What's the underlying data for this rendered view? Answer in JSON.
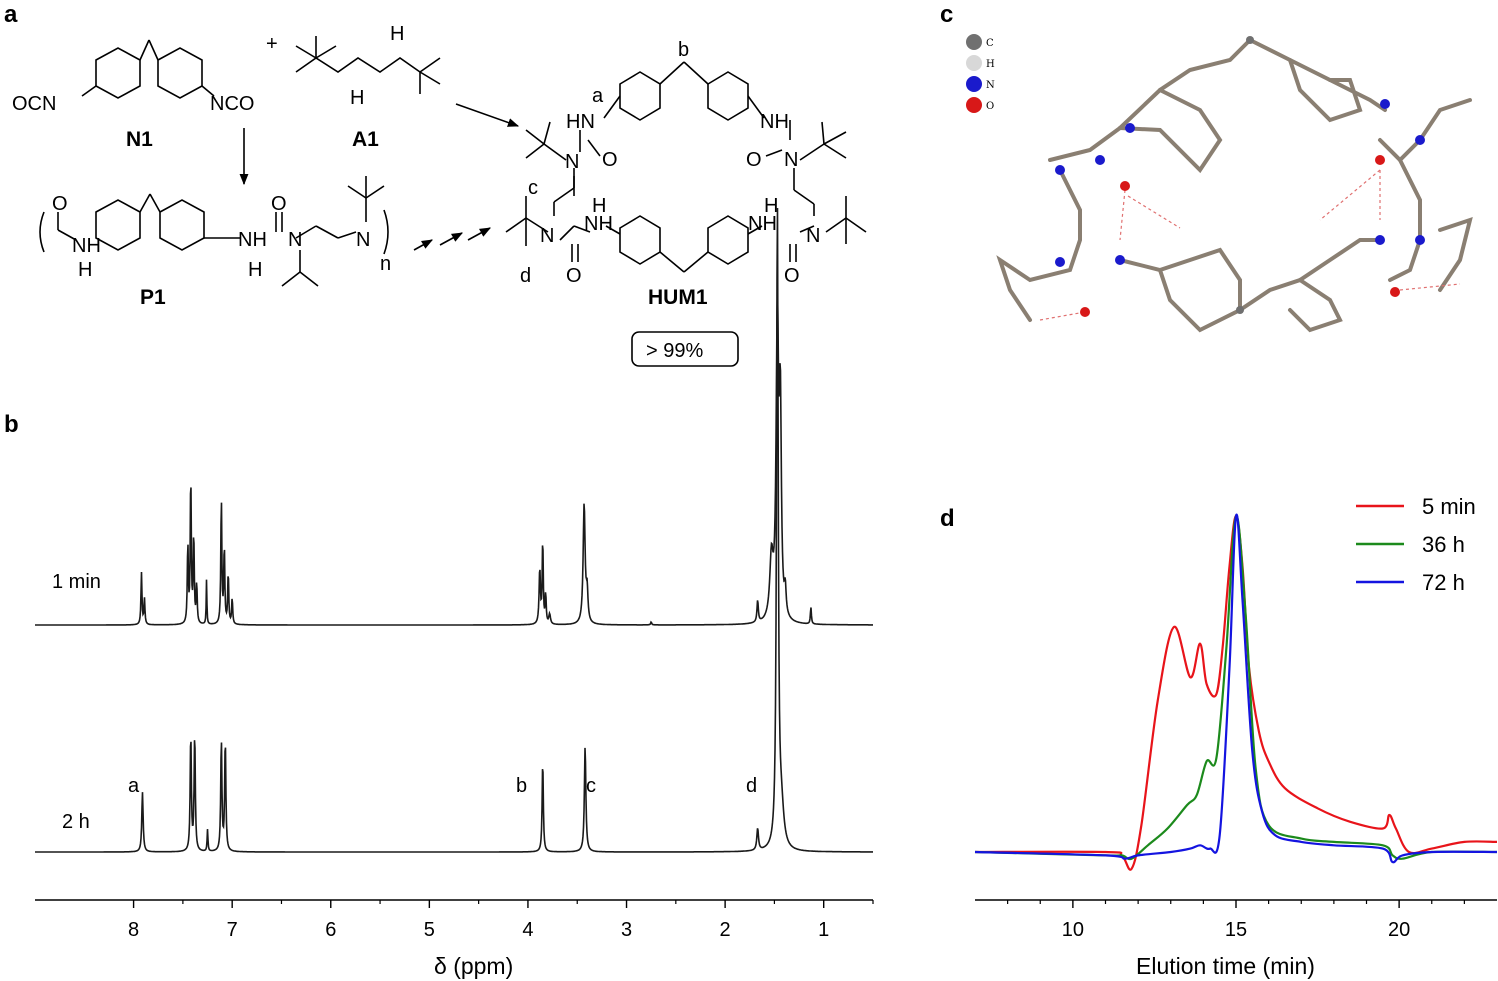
{
  "panels": {
    "a": "a",
    "b": "b",
    "c": "c",
    "d": "d"
  },
  "scheme": {
    "N1_label": "N1",
    "A1_label": "A1",
    "P1_label": "P1",
    "HUM1_label": "HUM1",
    "plus": "+",
    "yield": "> 99%",
    "OCN": "OCN",
    "NCO": "NCO",
    "NH": "NH",
    "N": "N",
    "H": "H",
    "HN": "HN",
    "O": "O",
    "n": "n",
    "label_a": "a",
    "label_b": "b",
    "label_c": "c",
    "label_d": "d"
  },
  "crystal_legend": {
    "items": [
      {
        "symbol": "C",
        "color": "#707070"
      },
      {
        "symbol": "H",
        "color": "#d8d8d8"
      },
      {
        "symbol": "N",
        "color": "#1a1acc"
      },
      {
        "symbol": "O",
        "color": "#d81818"
      }
    ]
  },
  "nmr": {
    "xlabel": "δ (ppm)",
    "xlim": [
      9.0,
      0.5
    ],
    "ticks": [
      "8",
      "7",
      "6",
      "5",
      "4",
      "3",
      "2",
      "1"
    ],
    "tick_values": [
      8,
      7,
      6,
      5,
      4,
      3,
      2,
      1
    ],
    "trace_top_label": "1 min",
    "trace_bottom_label": "2 h",
    "peak_labels": [
      "a",
      "b",
      "c",
      "d"
    ],
    "color": "#1a1a1a"
  },
  "chart_data": {
    "type": "line",
    "xlabel": "Elution time (min)",
    "ylabel": "",
    "xlim": [
      7,
      23
    ],
    "ticks": [
      "10",
      "15",
      "20"
    ],
    "tick_values": [
      10,
      15,
      20
    ],
    "legend_position": "top-right",
    "series": [
      {
        "name": "5 min",
        "color": "#e8141a",
        "x": [
          7,
          11,
          11.5,
          11.8,
          12.1,
          12.6,
          13.1,
          13.6,
          13.9,
          14.1,
          14.4,
          14.6,
          14.8,
          15.0,
          15.2,
          15.4,
          15.7,
          16.0,
          16.5,
          17.5,
          18.5,
          19.5,
          19.7,
          19.9,
          20.3,
          21,
          22,
          23
        ],
        "y": [
          0.0,
          0.0,
          -0.01,
          -0.05,
          0.08,
          0.45,
          0.67,
          0.52,
          0.62,
          0.5,
          0.47,
          0.62,
          0.85,
          1.0,
          0.85,
          0.55,
          0.36,
          0.27,
          0.19,
          0.13,
          0.09,
          0.07,
          0.11,
          0.07,
          0.0,
          0.01,
          0.03,
          0.03
        ]
      },
      {
        "name": "36 h",
        "color": "#1c8a1c",
        "x": [
          7,
          11,
          11.5,
          11.8,
          12.3,
          12.9,
          13.5,
          13.8,
          14.1,
          14.4,
          14.7,
          15.0,
          15.3,
          15.6,
          16.0,
          17,
          18,
          19.5,
          19.8,
          20.1,
          21,
          23
        ],
        "y": [
          0.0,
          -0.01,
          -0.01,
          -0.02,
          0.02,
          0.07,
          0.14,
          0.17,
          0.27,
          0.28,
          0.6,
          1.0,
          0.7,
          0.25,
          0.08,
          0.04,
          0.03,
          0.02,
          -0.01,
          -0.02,
          0.0,
          0.0
        ]
      },
      {
        "name": "72 h",
        "color": "#1414e0",
        "x": [
          7,
          11,
          11.6,
          12.0,
          13,
          13.6,
          13.9,
          14.2,
          14.5,
          14.8,
          15.0,
          15.2,
          15.5,
          15.8,
          16.2,
          17,
          18,
          19.5,
          19.8,
          20.1,
          21,
          23
        ],
        "y": [
          0.0,
          -0.01,
          -0.02,
          -0.01,
          0.0,
          0.01,
          0.02,
          0.01,
          0.05,
          0.55,
          1.0,
          0.75,
          0.3,
          0.12,
          0.05,
          0.03,
          0.02,
          0.01,
          -0.03,
          -0.01,
          0.0,
          0.0
        ]
      }
    ]
  }
}
